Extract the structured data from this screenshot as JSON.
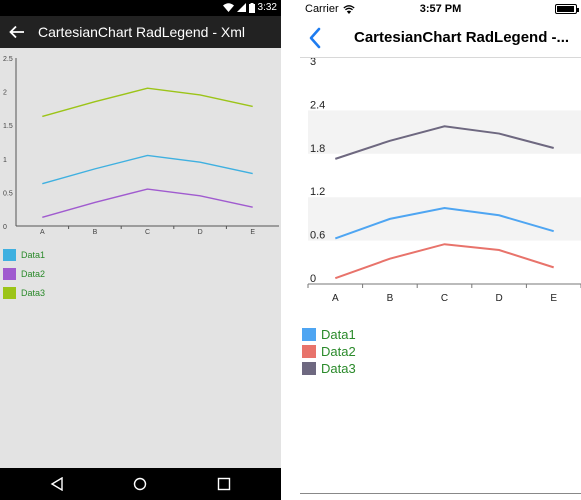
{
  "android": {
    "status_time": "3:32",
    "title": "CartesianChart RadLegend - Xml",
    "chart_data": {
      "type": "line",
      "categories": [
        "A",
        "B",
        "C",
        "D",
        "E"
      ],
      "y_ticks": [
        "0",
        "0.5",
        "1",
        "1.5",
        "2",
        "2.5"
      ],
      "ylim": [
        0,
        2.5
      ],
      "series": [
        {
          "name": "Data1",
          "color": "#3fb0e0",
          "values": [
            0.63,
            0.85,
            1.05,
            0.95,
            0.78
          ]
        },
        {
          "name": "Data2",
          "color": "#a05bcf",
          "values": [
            0.13,
            0.35,
            0.55,
            0.45,
            0.28
          ]
        },
        {
          "name": "Data3",
          "color": "#9cc418",
          "values": [
            1.63,
            1.85,
            2.05,
            1.95,
            1.78
          ]
        }
      ]
    }
  },
  "ios": {
    "carrier": "Carrier",
    "status_time": "3:57 PM",
    "title": "CartesianChart RadLegend -...",
    "chart_data": {
      "type": "line",
      "categories": [
        "A",
        "B",
        "C",
        "D",
        "E"
      ],
      "y_ticks": [
        "0",
        "0.6",
        "1.2",
        "1.8",
        "2.4",
        "3"
      ],
      "ylim": [
        0,
        3
      ],
      "series": [
        {
          "name": "Data1",
          "color": "#4ea5f2",
          "values": [
            0.63,
            0.9,
            1.05,
            0.95,
            0.73
          ]
        },
        {
          "name": "Data2",
          "color": "#e8736b",
          "values": [
            0.08,
            0.35,
            0.55,
            0.47,
            0.23
          ]
        },
        {
          "name": "Data3",
          "color": "#6e6880",
          "values": [
            1.73,
            1.98,
            2.18,
            2.08,
            1.88
          ]
        }
      ]
    }
  }
}
